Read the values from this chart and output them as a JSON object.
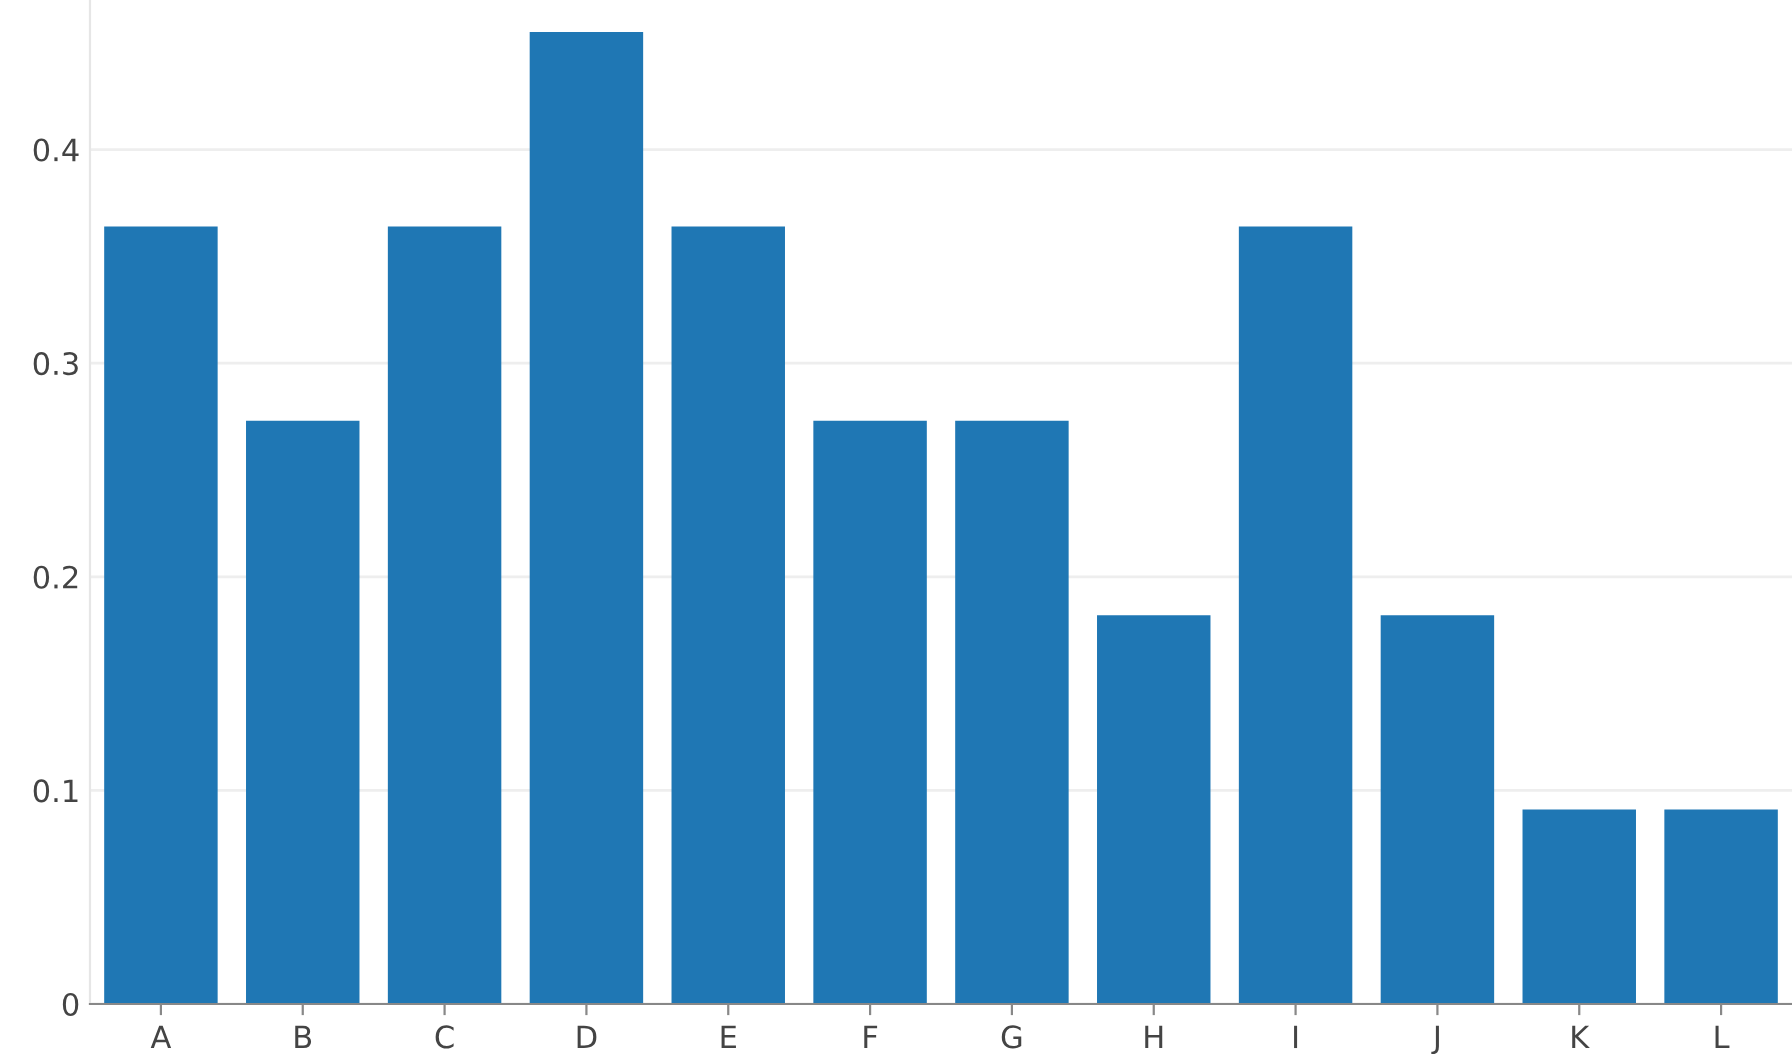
{
  "chart_data": {
    "type": "bar",
    "categories": [
      "A",
      "B",
      "C",
      "D",
      "E",
      "F",
      "G",
      "H",
      "I",
      "J",
      "K",
      "L"
    ],
    "values": [
      0.364,
      0.273,
      0.364,
      0.455,
      0.364,
      0.273,
      0.273,
      0.182,
      0.364,
      0.182,
      0.091,
      0.091
    ],
    "color": "#1f77b4",
    "ylim": [
      0,
      0.47
    ],
    "yticks": [
      0,
      0.1,
      0.2,
      0.3,
      0.4
    ],
    "grid": "y"
  }
}
